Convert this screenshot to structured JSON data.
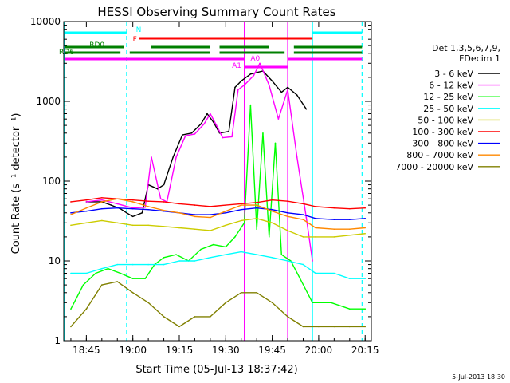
{
  "chart_data": {
    "type": "line",
    "title": "HESSI Observing Summary Count Rates",
    "xlabel": "Start Time (05-Jul-13 18:37:42)",
    "ylabel": "Count Rate (s⁻¹ detector⁻¹)",
    "yscale": "log",
    "ylim": [
      1,
      10000
    ],
    "xlim": [
      "18:37:42",
      "20:17:00"
    ],
    "grid": false,
    "x_ticks": [
      "18:45",
      "19:00",
      "19:15",
      "19:30",
      "19:45",
      "20:00",
      "20:15"
    ],
    "y_ticks": [
      "1",
      "10",
      "100",
      "1000",
      "10000"
    ],
    "legend_title": [
      "Det 1,3,5,6,7,9,",
      "FDecim 1"
    ],
    "legend_position": "right",
    "footer": "5-Jul-2013 18:30",
    "series": [
      {
        "name": "3 - 6 keV",
        "color": "#000000",
        "points": [
          [
            "18:45",
            55
          ],
          [
            "18:50",
            55
          ],
          [
            "18:53",
            50
          ],
          [
            "18:56",
            45
          ],
          [
            "18:58",
            40
          ],
          [
            "19:00",
            36
          ],
          [
            "19:03",
            40
          ],
          [
            "19:05",
            90
          ],
          [
            "19:08",
            80
          ],
          [
            "19:10",
            90
          ],
          [
            "19:13",
            200
          ],
          [
            "19:16",
            380
          ],
          [
            "19:19",
            400
          ],
          [
            "19:22",
            520
          ],
          [
            "19:24",
            700
          ],
          [
            "19:26",
            550
          ],
          [
            "19:28",
            400
          ],
          [
            "19:31",
            420
          ],
          [
            "19:33",
            1500
          ],
          [
            "19:35",
            1800
          ],
          [
            "19:38",
            2200
          ],
          [
            "19:42",
            2400
          ],
          [
            "19:45",
            1800
          ],
          [
            "19:48",
            1300
          ],
          [
            "19:50",
            1500
          ],
          [
            "19:53",
            1200
          ],
          [
            "19:56",
            800
          ]
        ]
      },
      {
        "name": "6 - 12 keV",
        "color": "#ff00ff",
        "points": [
          [
            "18:45",
            55
          ],
          [
            "18:50",
            58
          ],
          [
            "18:55",
            52
          ],
          [
            "19:00",
            46
          ],
          [
            "19:04",
            47
          ],
          [
            "19:06",
            200
          ],
          [
            "19:09",
            60
          ],
          [
            "19:11",
            55
          ],
          [
            "19:14",
            200
          ],
          [
            "19:17",
            370
          ],
          [
            "19:20",
            390
          ],
          [
            "19:23",
            520
          ],
          [
            "19:25",
            700
          ],
          [
            "19:27",
            500
          ],
          [
            "19:29",
            350
          ],
          [
            "19:32",
            360
          ],
          [
            "19:34",
            1400
          ],
          [
            "19:36",
            1600
          ],
          [
            "19:39",
            2100
          ],
          [
            "19:41",
            3000
          ],
          [
            "19:44",
            1600
          ],
          [
            "19:47",
            600
          ],
          [
            "19:50",
            1400
          ],
          [
            "19:53",
            200
          ],
          [
            "19:56",
            35
          ],
          [
            "19:58",
            10
          ]
        ]
      },
      {
        "name": "12 - 25 keV",
        "color": "#00ff00",
        "points": [
          [
            "18:40",
            2.5
          ],
          [
            "18:44",
            5
          ],
          [
            "18:48",
            7
          ],
          [
            "18:52",
            8
          ],
          [
            "18:56",
            7
          ],
          [
            "19:00",
            6
          ],
          [
            "19:04",
            6
          ],
          [
            "19:07",
            9
          ],
          [
            "19:10",
            11
          ],
          [
            "19:14",
            12
          ],
          [
            "19:18",
            10
          ],
          [
            "19:22",
            14
          ],
          [
            "19:26",
            16
          ],
          [
            "19:30",
            15
          ],
          [
            "19:33",
            20
          ],
          [
            "19:36",
            30
          ],
          [
            "19:38",
            900
          ],
          [
            "19:40",
            25
          ],
          [
            "19:42",
            400
          ],
          [
            "19:44",
            20
          ],
          [
            "19:46",
            300
          ],
          [
            "19:48",
            12
          ],
          [
            "19:51",
            10
          ],
          [
            "19:54",
            6
          ],
          [
            "19:58",
            3
          ],
          [
            "20:04",
            3
          ],
          [
            "20:10",
            2.5
          ],
          [
            "20:15",
            2.5
          ]
        ]
      },
      {
        "name": "25 - 50 keV",
        "color": "#00ffff",
        "points": [
          [
            "18:40",
            7
          ],
          [
            "18:45",
            7
          ],
          [
            "18:50",
            8
          ],
          [
            "18:55",
            9
          ],
          [
            "19:00",
            9
          ],
          [
            "19:05",
            9
          ],
          [
            "19:10",
            9
          ],
          [
            "19:15",
            10
          ],
          [
            "19:20",
            10
          ],
          [
            "19:25",
            11
          ],
          [
            "19:30",
            12
          ],
          [
            "19:35",
            13
          ],
          [
            "19:40",
            12
          ],
          [
            "19:45",
            11
          ],
          [
            "19:50",
            10
          ],
          [
            "19:55",
            9
          ],
          [
            "19:59",
            7
          ],
          [
            "20:05",
            7
          ],
          [
            "20:10",
            6
          ],
          [
            "20:15",
            6
          ]
        ]
      },
      {
        "name": "50 - 100 keV",
        "color": "#cccc00",
        "points": [
          [
            "18:40",
            28
          ],
          [
            "18:45",
            30
          ],
          [
            "18:50",
            32
          ],
          [
            "18:55",
            30
          ],
          [
            "19:00",
            28
          ],
          [
            "19:05",
            28
          ],
          [
            "19:10",
            27
          ],
          [
            "19:15",
            26
          ],
          [
            "19:20",
            25
          ],
          [
            "19:25",
            24
          ],
          [
            "19:30",
            28
          ],
          [
            "19:35",
            32
          ],
          [
            "19:40",
            34
          ],
          [
            "19:45",
            30
          ],
          [
            "19:50",
            24
          ],
          [
            "19:55",
            20
          ],
          [
            "19:59",
            20
          ],
          [
            "20:05",
            20
          ],
          [
            "20:10",
            21
          ],
          [
            "20:15",
            22
          ]
        ]
      },
      {
        "name": "100 - 300 keV",
        "color": "#ff0000",
        "points": [
          [
            "18:40",
            55
          ],
          [
            "18:45",
            58
          ],
          [
            "18:50",
            62
          ],
          [
            "18:55",
            60
          ],
          [
            "19:00",
            58
          ],
          [
            "19:05",
            56
          ],
          [
            "19:10",
            55
          ],
          [
            "19:15",
            52
          ],
          [
            "19:20",
            50
          ],
          [
            "19:25",
            48
          ],
          [
            "19:30",
            50
          ],
          [
            "19:35",
            52
          ],
          [
            "19:40",
            54
          ],
          [
            "19:45",
            58
          ],
          [
            "19:50",
            56
          ],
          [
            "19:55",
            52
          ],
          [
            "19:59",
            48
          ],
          [
            "20:05",
            46
          ],
          [
            "20:10",
            45
          ],
          [
            "20:15",
            46
          ]
        ]
      },
      {
        "name": "300 - 800 keV",
        "color": "#0000ff",
        "points": [
          [
            "18:40",
            40
          ],
          [
            "18:45",
            42
          ],
          [
            "18:50",
            45
          ],
          [
            "18:55",
            46
          ],
          [
            "19:00",
            45
          ],
          [
            "19:05",
            44
          ],
          [
            "19:10",
            42
          ],
          [
            "19:15",
            40
          ],
          [
            "19:20",
            38
          ],
          [
            "19:25",
            38
          ],
          [
            "19:30",
            40
          ],
          [
            "19:35",
            44
          ],
          [
            "19:40",
            46
          ],
          [
            "19:45",
            44
          ],
          [
            "19:50",
            40
          ],
          [
            "19:55",
            38
          ],
          [
            "19:59",
            34
          ],
          [
            "20:05",
            33
          ],
          [
            "20:10",
            33
          ],
          [
            "20:15",
            34
          ]
        ]
      },
      {
        "name": "800 - 7000 keV",
        "color": "#ff8800",
        "points": [
          [
            "18:40",
            38
          ],
          [
            "18:45",
            46
          ],
          [
            "18:50",
            55
          ],
          [
            "18:55",
            60
          ],
          [
            "19:00",
            55
          ],
          [
            "19:05",
            48
          ],
          [
            "19:10",
            43
          ],
          [
            "19:15",
            40
          ],
          [
            "19:20",
            36
          ],
          [
            "19:25",
            35
          ],
          [
            "19:30",
            42
          ],
          [
            "19:35",
            50
          ],
          [
            "19:40",
            50
          ],
          [
            "19:45",
            42
          ],
          [
            "19:50",
            36
          ],
          [
            "19:55",
            33
          ],
          [
            "19:59",
            26
          ],
          [
            "20:05",
            25
          ],
          [
            "20:10",
            25
          ],
          [
            "20:15",
            26
          ]
        ]
      },
      {
        "name": "7000 - 20000 keV",
        "color": "#808000",
        "points": [
          [
            "18:40",
            1.5
          ],
          [
            "18:45",
            2.5
          ],
          [
            "18:50",
            5
          ],
          [
            "18:55",
            5.5
          ],
          [
            "19:00",
            4
          ],
          [
            "19:05",
            3
          ],
          [
            "19:10",
            2
          ],
          [
            "19:15",
            1.5
          ],
          [
            "19:20",
            2
          ],
          [
            "19:25",
            2
          ],
          [
            "19:30",
            3
          ],
          [
            "19:35",
            4
          ],
          [
            "19:40",
            4
          ],
          [
            "19:45",
            3
          ],
          [
            "19:50",
            2
          ],
          [
            "19:55",
            1.5
          ],
          [
            "20:00",
            1.5
          ],
          [
            "20:05",
            1.5
          ],
          [
            "20:10",
            1.5
          ],
          [
            "20:15",
            1.5
          ]
        ]
      }
    ],
    "flag_bars": [
      {
        "label": "N",
        "color": "#00ffff",
        "segments": [
          [
            "18:37:42",
            "18:58"
          ],
          [
            "19:58",
            "20:14"
          ]
        ]
      },
      {
        "label": "F",
        "color": "#ff0000",
        "segments": [
          [
            "19:02",
            "19:58"
          ]
        ]
      },
      {
        "label": "RD0",
        "color": "#008000",
        "segments": [
          [
            "18:37:42",
            "18:57"
          ],
          [
            "19:06",
            "19:25"
          ],
          [
            "19:28",
            "19:44"
          ],
          [
            "19:52",
            "20:14"
          ]
        ]
      },
      {
        "label": "RD6",
        "color": "#008000",
        "segments": [
          [
            "18:37:42",
            "18:56"
          ],
          [
            "18:59",
            "19:25"
          ],
          [
            "19:28",
            "19:49"
          ],
          [
            "19:52",
            "20:14"
          ]
        ]
      },
      {
        "label": "A1",
        "color": "#ff00ff",
        "segments": [
          [
            "18:37:42",
            "19:36"
          ],
          [
            "19:50",
            "20:14"
          ]
        ]
      },
      {
        "label": "A0",
        "color": "#ff00ff",
        "segments": [
          [
            "19:36",
            "19:50"
          ]
        ]
      }
    ],
    "vlines": [
      {
        "time": "18:37:42",
        "color": "#00ffff",
        "style": "solid"
      },
      {
        "time": "18:58",
        "color": "#00ffff",
        "style": "dashed"
      },
      {
        "time": "19:58",
        "color": "#00ffff",
        "style": "solid"
      },
      {
        "time": "20:14",
        "color": "#00ffff",
        "style": "dashed"
      },
      {
        "time": "19:36",
        "color": "#ff00ff",
        "style": "solid"
      },
      {
        "time": "19:50",
        "color": "#ff00ff",
        "style": "solid"
      }
    ]
  }
}
